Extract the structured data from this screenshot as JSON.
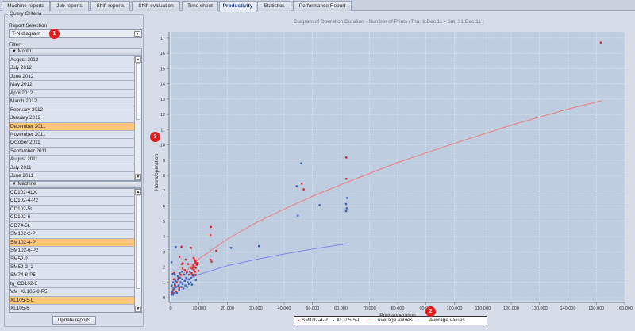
{
  "tabs": [
    {
      "label": "Machine reports"
    },
    {
      "label": "Job reports"
    },
    {
      "label": "Shift reports"
    },
    {
      "label": "Shift evaluation"
    },
    {
      "label": "Time sheet"
    },
    {
      "label": "Productivity",
      "active": true
    },
    {
      "label": "Statistics"
    },
    {
      "label": "Performance Report"
    }
  ],
  "query": {
    "title": "Query Criteria",
    "report_selection_label": "Report Selection",
    "report_selection_value": "T-N diagram",
    "filter_label": "Filter:",
    "month_header": "Month:",
    "machine_header": "Machine:",
    "update_button": "Update reports",
    "months": [
      {
        "label": "August 2012"
      },
      {
        "label": "July 2012"
      },
      {
        "label": "June 2012"
      },
      {
        "label": "May 2012"
      },
      {
        "label": "April 2012"
      },
      {
        "label": "March 2012"
      },
      {
        "label": "February 2012"
      },
      {
        "label": "January 2012"
      },
      {
        "label": "December 2011",
        "selected": true
      },
      {
        "label": "November 2011"
      },
      {
        "label": "October 2011"
      },
      {
        "label": "September 2011"
      },
      {
        "label": "August 2011"
      },
      {
        "label": "July 2011"
      },
      {
        "label": "June 2011"
      }
    ],
    "machines": [
      {
        "label": "CD102-4LX"
      },
      {
        "label": "CD102-4-P2"
      },
      {
        "label": "CD102-5L"
      },
      {
        "label": "CD102-6"
      },
      {
        "label": "CD74-5L"
      },
      {
        "label": "SM102-2-P"
      },
      {
        "label": "SM102-4-P",
        "selected": true
      },
      {
        "label": "SM102-6-P2"
      },
      {
        "label": "SM52-2"
      },
      {
        "label": "SM52-2_2"
      },
      {
        "label": "SM74-8-P5"
      },
      {
        "label": "tg_CD102-8"
      },
      {
        "label": "VM_XL105-8-P5"
      },
      {
        "label": "XL105-5-L",
        "selected": true
      },
      {
        "label": "XL105-6"
      }
    ]
  },
  "badges": {
    "b1": "1",
    "b2": "2",
    "b3": "3"
  },
  "colors": {
    "red": "#e8202a",
    "blue": "#3a64b8",
    "red_line": "#f07a7a",
    "blue_line": "#7d86f0",
    "plot_bg": "#bfcde0",
    "selection": "#ffc67d"
  },
  "chart_data": {
    "type": "scatter",
    "title": "Diagram of Operation Duration - Number of Prints   (Thu, 1.Dec.11  - Sat, 31.Dec.11 )",
    "xlabel": "Prints/operation",
    "ylabel": "Hours/operation",
    "xlim": [
      0,
      160000
    ],
    "ylim": [
      0,
      17.5
    ],
    "xticks": [
      0,
      10000,
      20000,
      30000,
      40000,
      50000,
      60000,
      70000,
      80000,
      90000,
      100000,
      110000,
      120000,
      130000,
      140000,
      150000,
      160000
    ],
    "xtick_labels": [
      "0",
      "10,000",
      "20,000",
      "30,000",
      "40,000",
      "50,000",
      "60,000",
      "70,000",
      "80,000",
      "90,000",
      "100,000",
      "110,000",
      "120,000",
      "130,000",
      "140,000",
      "150,000",
      "160,000"
    ],
    "yticks": [
      0,
      1,
      2,
      3,
      4,
      5,
      6,
      7,
      8,
      9,
      10,
      11,
      12,
      13,
      14,
      15,
      16,
      17
    ],
    "grid": true,
    "legend": "bottom",
    "series": [
      {
        "name": "SM102-4-P",
        "kind": "points",
        "color": "#e8202a",
        "points": [
          [
            151600,
            16.7
          ],
          [
            61900,
            9.18
          ],
          [
            61900,
            7.78
          ],
          [
            46200,
            7.47
          ],
          [
            46900,
            7.09
          ],
          [
            14200,
            4.63
          ],
          [
            14000,
            4.1
          ],
          [
            16100,
            3.07
          ],
          [
            14000,
            2.49
          ],
          [
            14400,
            2.36
          ],
          [
            3800,
            3.33
          ],
          [
            7200,
            3.26
          ],
          [
            3100,
            2.67
          ],
          [
            5300,
            2.49
          ],
          [
            3900,
            2.2
          ],
          [
            4300,
            2.25
          ],
          [
            6200,
            2.2
          ],
          [
            8100,
            2.6
          ],
          [
            8400,
            2.5
          ],
          [
            8600,
            2.4
          ],
          [
            8800,
            2.3
          ],
          [
            9500,
            2.28
          ],
          [
            8000,
            2.1
          ],
          [
            8400,
            2.0
          ],
          [
            8900,
            1.95
          ],
          [
            7700,
            1.9
          ],
          [
            8200,
            1.8
          ],
          [
            9800,
            1.75
          ],
          [
            8600,
            1.7
          ],
          [
            7400,
            1.6
          ],
          [
            5800,
            1.7
          ],
          [
            4200,
            1.9
          ],
          [
            3500,
            1.5
          ],
          [
            2800,
            1.3
          ],
          [
            6500,
            1.5
          ],
          [
            7800,
            1.45
          ],
          [
            8800,
            1.5
          ],
          [
            1200,
            1.6
          ],
          [
            2200,
            1.0
          ],
          [
            1500,
            0.8
          ],
          [
            3000,
            0.6
          ],
          [
            900,
            0.5
          ],
          [
            600,
            0.3
          ],
          [
            2000,
            0.4
          ],
          [
            1100,
            1.2
          ],
          [
            5000,
            1.8
          ],
          [
            9200,
            2.15
          ],
          [
            7000,
            1.95
          ]
        ]
      },
      {
        "name": "XL105-5-L",
        "kind": "points",
        "color": "#3a64b8",
        "points": [
          [
            46000,
            8.8
          ],
          [
            44400,
            7.3
          ],
          [
            44800,
            5.37
          ],
          [
            52500,
            6.06
          ],
          [
            62200,
            6.53
          ],
          [
            61800,
            6.13
          ],
          [
            62000,
            5.85
          ],
          [
            61800,
            5.66
          ],
          [
            31100,
            3.37
          ],
          [
            21300,
            3.26
          ],
          [
            1800,
            3.31
          ],
          [
            300,
            2.32
          ],
          [
            8900,
            1.16
          ],
          [
            700,
            1.55
          ],
          [
            1500,
            1.5
          ],
          [
            2500,
            1.4
          ],
          [
            3200,
            1.6
          ],
          [
            4000,
            1.7
          ],
          [
            4800,
            1.5
          ],
          [
            5500,
            1.3
          ],
          [
            6400,
            1.2
          ],
          [
            7000,
            1.0
          ],
          [
            7500,
            0.85
          ],
          [
            6000,
            1.0
          ],
          [
            5000,
            1.1
          ],
          [
            4200,
            0.9
          ],
          [
            3500,
            1.0
          ],
          [
            2800,
            0.8
          ],
          [
            2000,
            0.7
          ],
          [
            1500,
            0.9
          ],
          [
            1000,
            0.6
          ],
          [
            600,
            0.4
          ],
          [
            400,
            0.8
          ],
          [
            300,
            0.2
          ],
          [
            800,
            0.2
          ],
          [
            1300,
            0.3
          ],
          [
            2200,
            0.3
          ],
          [
            3000,
            0.5
          ],
          [
            3800,
            0.7
          ],
          [
            4500,
            0.6
          ],
          [
            5200,
            0.8
          ],
          [
            5800,
            0.7
          ],
          [
            6500,
            0.9
          ],
          [
            7200,
            1.3
          ],
          [
            7800,
            1.5
          ],
          [
            1800,
            1.1
          ],
          [
            2600,
            1.2
          ],
          [
            3300,
            1.3
          ],
          [
            900,
            1.0
          ],
          [
            4100,
            1.2
          ],
          [
            5600,
            1.6
          ],
          [
            6800,
            1.7
          ]
        ]
      },
      {
        "name": "Average values",
        "kind": "line",
        "color": "#f07a7a",
        "points": [
          [
            2000,
            0.97
          ],
          [
            5000,
            1.68
          ],
          [
            10000,
            2.54
          ],
          [
            20000,
            3.84
          ],
          [
            30000,
            4.9
          ],
          [
            40000,
            5.8
          ],
          [
            50000,
            6.64
          ],
          [
            62000,
            7.55
          ],
          [
            80000,
            8.85
          ],
          [
            100000,
            10.1
          ],
          [
            120000,
            11.3
          ],
          [
            140000,
            12.35
          ],
          [
            152000,
            12.9
          ]
        ]
      },
      {
        "name": "Average values",
        "kind": "line",
        "color": "#7d86f0",
        "points": [
          [
            1000,
            0.53
          ],
          [
            3000,
            0.87
          ],
          [
            5000,
            1.11
          ],
          [
            10000,
            1.52
          ],
          [
            20000,
            2.09
          ],
          [
            30000,
            2.5
          ],
          [
            40000,
            2.86
          ],
          [
            50000,
            3.18
          ],
          [
            62000,
            3.52
          ]
        ]
      }
    ]
  }
}
